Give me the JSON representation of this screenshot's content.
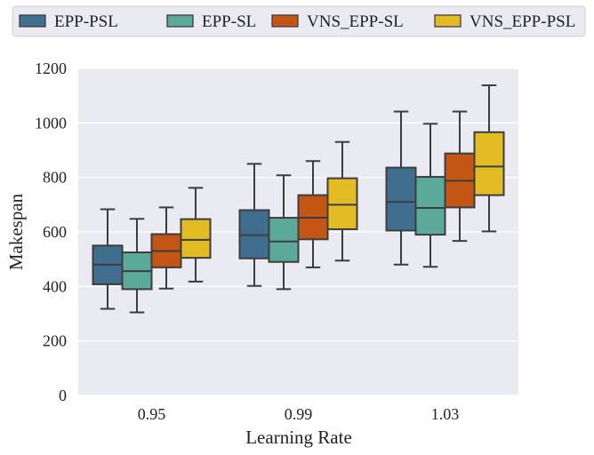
{
  "chart_data": {
    "type": "box",
    "title": "",
    "xlabel": "Learning Rate",
    "ylabel": "Makespan",
    "ylim": [
      0,
      1200
    ],
    "yticks": [
      0,
      200,
      400,
      600,
      800,
      1000,
      1200
    ],
    "grid": true,
    "legend_position": "top",
    "categories": [
      "0.95",
      "0.99",
      "1.03"
    ],
    "series": [
      {
        "name": "EPP-PSL",
        "color": "#3f6e8f",
        "boxes": [
          {
            "whislo": 318,
            "q1": 408,
            "med": 480,
            "q3": 550,
            "whishi": 683
          },
          {
            "whislo": 402,
            "q1": 503,
            "med": 588,
            "q3": 680,
            "whishi": 850
          },
          {
            "whislo": 480,
            "q1": 605,
            "med": 710,
            "q3": 836,
            "whishi": 1042
          }
        ]
      },
      {
        "name": "EPP-SL",
        "color": "#5aa99b",
        "boxes": [
          {
            "whislo": 305,
            "q1": 390,
            "med": 456,
            "q3": 525,
            "whishi": 648
          },
          {
            "whislo": 390,
            "q1": 490,
            "med": 565,
            "q3": 652,
            "whishi": 808
          },
          {
            "whislo": 472,
            "q1": 590,
            "med": 688,
            "q3": 802,
            "whishi": 997
          }
        ]
      },
      {
        "name": "VNS_EPP-SL",
        "color": "#c45615",
        "boxes": [
          {
            "whislo": 392,
            "q1": 470,
            "med": 530,
            "q3": 592,
            "whishi": 690
          },
          {
            "whislo": 470,
            "q1": 573,
            "med": 652,
            "q3": 735,
            "whishi": 860
          },
          {
            "whislo": 567,
            "q1": 690,
            "med": 788,
            "q3": 888,
            "whishi": 1042
          }
        ]
      },
      {
        "name": "VNS_EPP-PSL",
        "color": "#e3bc24",
        "boxes": [
          {
            "whislo": 418,
            "q1": 505,
            "med": 571,
            "q3": 647,
            "whishi": 762
          },
          {
            "whislo": 495,
            "q1": 610,
            "med": 700,
            "q3": 797,
            "whishi": 930
          },
          {
            "whislo": 602,
            "q1": 735,
            "med": 840,
            "q3": 966,
            "whishi": 1138
          }
        ]
      }
    ]
  }
}
